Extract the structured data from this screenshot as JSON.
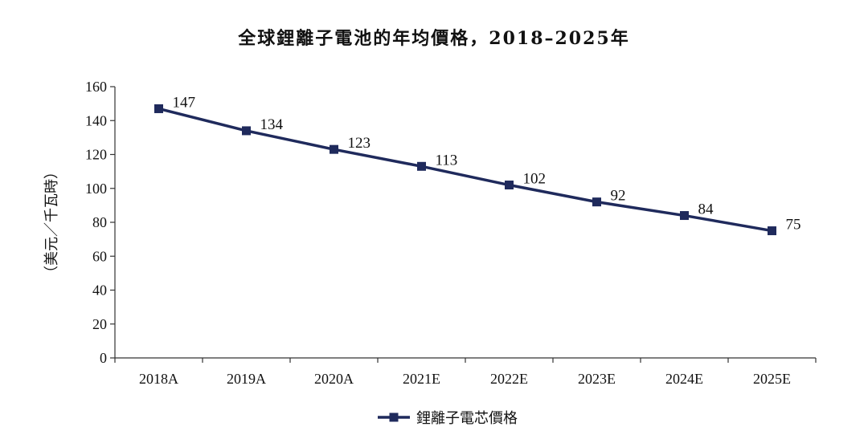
{
  "chart_data": {
    "type": "line",
    "title": "全球鋰離子電池的年均價格，2018–2025年",
    "ylabel": "（美元／千瓦時）",
    "xlabel": "",
    "categories": [
      "2018A",
      "2019A",
      "2020A",
      "2021E",
      "2022E",
      "2023E",
      "2024E",
      "2025E"
    ],
    "series": [
      {
        "name": "鋰離子電芯價格",
        "values": [
          147,
          134,
          123,
          113,
          102,
          92,
          84,
          75
        ],
        "color": "#1f2a5c"
      }
    ],
    "ylim": [
      0,
      160
    ],
    "yticks": [
      "0",
      "20",
      "40",
      "60",
      "80",
      "100",
      "120",
      "140",
      "160"
    ],
    "grid": false,
    "legend_position": "bottom-center",
    "data_labels": true
  }
}
